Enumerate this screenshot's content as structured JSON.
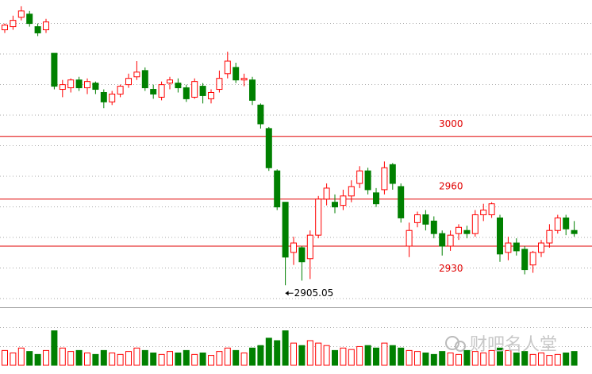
{
  "chart_data": {
    "type": "candlestick",
    "ylim": [
      2892,
      3087
    ],
    "open": [
      3068,
      3070,
      3076,
      3078,
      3070,
      3068,
      3053,
      3030,
      3031,
      3036,
      3031,
      3034,
      3028,
      3022,
      3027,
      3033,
      3038,
      3042,
      3030,
      3025,
      3034,
      3034,
      3031,
      3025,
      3032,
      3024,
      3030,
      3040,
      3044,
      3036,
      3036,
      3020,
      3005,
      2978,
      2958,
      2926,
      2929,
      2922,
      2937,
      2960,
      2958,
      2956,
      2962,
      2970,
      2978,
      2964,
      2966,
      2982,
      2968,
      2930,
      2945,
      2950,
      2946,
      2938,
      2930,
      2938,
      2940,
      2938,
      2950,
      2950,
      2948,
      2926,
      2932,
      2928,
      2918,
      2926,
      2932,
      2940,
      2948,
      2940
    ],
    "high": [
      3072,
      3077,
      3083,
      3080,
      3072,
      3075,
      3053,
      3036,
      3037,
      3038,
      3037,
      3035,
      3030,
      3029,
      3033,
      3040,
      3048,
      3044,
      3033,
      3035,
      3038,
      3037,
      3033,
      3037,
      3034,
      3030,
      3042,
      3054,
      3047,
      3040,
      3038,
      3021,
      3006,
      2979,
      2958,
      2936,
      2930,
      2940,
      2962,
      2970,
      2963,
      2966,
      2972,
      2981,
      2980,
      2967,
      2984,
      2983,
      2970,
      2945,
      2952,
      2953,
      2949,
      2940,
      2940,
      2944,
      2943,
      2953,
      2957,
      2958,
      2950,
      2936,
      2935,
      2930,
      2927,
      2934,
      2944,
      2950,
      2950,
      2946
    ],
    "low": [
      3066,
      3068,
      3074,
      3070,
      3064,
      3066,
      3030,
      3025,
      3028,
      3029,
      3027,
      3027,
      3018,
      3020,
      3025,
      3031,
      3036,
      3029,
      3024,
      3023,
      3030,
      3028,
      3022,
      3024,
      3021,
      3021,
      3028,
      3037,
      3034,
      3032,
      3020,
      3005,
      2978,
      2953,
      2905.05,
      2918,
      2908,
      2909,
      2935,
      2956,
      2951,
      2953,
      2958,
      2967,
      2963,
      2955,
      2963,
      2966,
      2945,
      2923,
      2942,
      2940,
      2935,
      2924,
      2927,
      2934,
      2935,
      2936,
      2946,
      2948,
      2920,
      2921,
      2924,
      2912,
      2913,
      2923,
      2929,
      2938,
      2937,
      2936
    ],
    "close": [
      3071,
      3074,
      3080,
      3072,
      3066,
      3073,
      3032,
      3033,
      3036,
      3031,
      3035,
      3030,
      3022,
      3027,
      3032,
      3037,
      3041,
      3031,
      3027,
      3033,
      3036,
      3031,
      3024,
      3035,
      3026,
      3028,
      3037,
      3048,
      3036,
      3037,
      3023,
      3008,
      2980,
      2955,
      2923,
      2932,
      2920,
      2937,
      2960,
      2967,
      2955,
      2962,
      2968,
      2978,
      2966,
      2957,
      2980,
      2970,
      2948,
      2940,
      2950,
      2944,
      2938,
      2930,
      2937,
      2942,
      2938,
      2950,
      2953,
      2957,
      2925,
      2932,
      2927,
      2915,
      2926,
      2932,
      2940,
      2948,
      2941,
      2938
    ],
    "volume": [
      30,
      25,
      35,
      28,
      22,
      30,
      70,
      35,
      28,
      30,
      25,
      22,
      30,
      25,
      22,
      28,
      35,
      30,
      25,
      22,
      28,
      25,
      30,
      22,
      25,
      20,
      28,
      35,
      30,
      25,
      35,
      40,
      55,
      50,
      70,
      45,
      40,
      50,
      45,
      40,
      30,
      35,
      32,
      38,
      40,
      35,
      45,
      40,
      35,
      30,
      28,
      25,
      22,
      28,
      25,
      22,
      30,
      28,
      25,
      30,
      35,
      30,
      25,
      28,
      22,
      25,
      20,
      22,
      25,
      28
    ],
    "volume_ylim": [
      0,
      100
    ],
    "levels": [
      3000,
      2960,
      2930
    ],
    "up_color": "#ff0000",
    "down_color": "#008000",
    "level_color": "#e00000",
    "watermark": "财吧名人堂"
  }
}
